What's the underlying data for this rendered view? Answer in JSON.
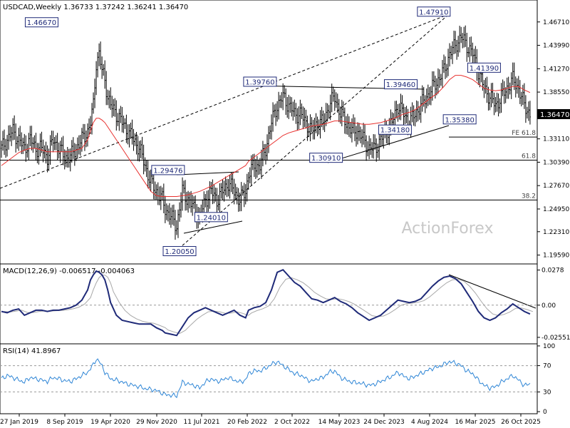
{
  "chart_data": {
    "type": "line",
    "title": "USDCAD,Weekly  1.36733 1.37242 1.36241 1.36470",
    "watermark": "ActionForex",
    "colors": {
      "candle": "#000000",
      "sma": "#e8312f",
      "macd": "#1f2a78",
      "signal": "#a8a8a8",
      "rsi": "#2f86d6",
      "label_border": "#1f2a78",
      "trendline": "#000000"
    },
    "x_ticks": [
      "27 Jan 2019",
      "8 Sep 2019",
      "19 Apr 2020",
      "29 Nov 2020",
      "11 Jul 2021",
      "20 Feb 2022",
      "2 Oct 2022",
      "14 May 2023",
      "24 Dec 2023",
      "4 Aug 2024",
      "16 Mar 2025",
      "26 Oct 2025"
    ],
    "price_panel": {
      "ylim": [
        1.1889,
        1.4893
      ],
      "y_ticks": [
        "1.46710",
        "1.43990",
        "1.41270",
        "1.38550",
        "1.35830",
        "1.33110",
        "1.30390",
        "1.27670",
        "1.24950",
        "1.22310",
        "1.19590"
      ],
      "last_price": "1.36470",
      "series_t": [
        0,
        4,
        8,
        12,
        16,
        20,
        24,
        28,
        32,
        36,
        40,
        44,
        48,
        52,
        56,
        60,
        62,
        64,
        66,
        68,
        70,
        72,
        74,
        76,
        80,
        84,
        88,
        92,
        96,
        100,
        104,
        108,
        112,
        114,
        118,
        122,
        126,
        130,
        134,
        138,
        142,
        146,
        150,
        154,
        158,
        162,
        166,
        170,
        172,
        176,
        180,
        184,
        188,
        192,
        196,
        200,
        204,
        208,
        212,
        216,
        220,
        224,
        228,
        232,
        236,
        240,
        244,
        248,
        252,
        256,
        260,
        264,
        268,
        272,
        276,
        280,
        284,
        288,
        292,
        296,
        300,
        304,
        308,
        312,
        316,
        320,
        324,
        328,
        332,
        336,
        340,
        344,
        348,
        352,
        356,
        360,
        364,
        368
      ],
      "close": [
        1.32,
        1.33,
        1.34,
        1.33,
        1.32,
        1.33,
        1.32,
        1.32,
        1.31,
        1.33,
        1.32,
        1.31,
        1.31,
        1.32,
        1.33,
        1.34,
        1.35,
        1.37,
        1.42,
        1.43,
        1.41,
        1.4,
        1.38,
        1.37,
        1.36,
        1.35,
        1.34,
        1.33,
        1.32,
        1.3,
        1.28,
        1.27,
        1.26,
        1.25,
        1.24,
        1.23,
        1.27,
        1.26,
        1.25,
        1.24,
        1.26,
        1.27,
        1.26,
        1.27,
        1.28,
        1.27,
        1.26,
        1.27,
        1.29,
        1.3,
        1.3,
        1.32,
        1.35,
        1.37,
        1.38,
        1.37,
        1.36,
        1.36,
        1.35,
        1.34,
        1.35,
        1.35,
        1.37,
        1.38,
        1.36,
        1.35,
        1.34,
        1.34,
        1.33,
        1.32,
        1.32,
        1.33,
        1.34,
        1.35,
        1.37,
        1.36,
        1.35,
        1.36,
        1.37,
        1.38,
        1.39,
        1.4,
        1.41,
        1.43,
        1.44,
        1.45,
        1.44,
        1.43,
        1.41,
        1.39,
        1.38,
        1.37,
        1.38,
        1.39,
        1.4,
        1.39,
        1.37,
        1.36
      ],
      "sma": [
        1.3,
        1.305,
        1.31,
        1.315,
        1.318,
        1.32,
        1.32,
        1.318,
        1.316,
        1.316,
        1.316,
        1.316,
        1.316,
        1.318,
        1.32,
        1.33,
        1.34,
        1.35,
        1.355,
        1.355,
        1.353,
        1.35,
        1.345,
        1.34,
        1.33,
        1.32,
        1.31,
        1.3,
        1.29,
        1.28,
        1.27,
        1.265,
        1.264,
        1.264,
        1.264,
        1.264,
        1.265,
        1.266,
        1.268,
        1.27,
        1.273,
        1.276,
        1.28,
        1.284,
        1.288,
        1.292,
        1.296,
        1.3,
        1.305,
        1.31,
        1.315,
        1.32,
        1.325,
        1.33,
        1.335,
        1.338,
        1.34,
        1.342,
        1.344,
        1.346,
        1.347,
        1.348,
        1.35,
        1.352,
        1.352,
        1.351,
        1.35,
        1.349,
        1.348,
        1.348,
        1.349,
        1.35,
        1.352,
        1.354,
        1.357,
        1.36,
        1.362,
        1.365,
        1.37,
        1.375,
        1.38,
        1.385,
        1.392,
        1.4,
        1.405,
        1.405,
        1.403,
        1.4,
        1.395,
        1.39,
        1.388,
        1.387,
        1.388,
        1.39,
        1.392,
        1.392,
        1.388,
        1.385
      ],
      "labels": [
        {
          "text": "1.46670",
          "t": 28,
          "p": 1.4667
        },
        {
          "text": "1.20050",
          "t": 124,
          "p": 1.2005
        },
        {
          "text": "1.29476",
          "t": 116,
          "p": 1.2948
        },
        {
          "text": "1.24010",
          "t": 146,
          "p": 1.2401
        },
        {
          "text": "1.39760",
          "t": 180,
          "p": 1.3976
        },
        {
          "text": "1.30910",
          "t": 226,
          "p": 1.3091
        },
        {
          "text": "1.39460",
          "t": 278,
          "p": 1.3946
        },
        {
          "text": "1.34180",
          "t": 274,
          "p": 1.3418
        },
        {
          "text": "1.47910",
          "t": 301,
          "p": 1.4791
        },
        {
          "text": "1.35380",
          "t": 319,
          "p": 1.3538
        },
        {
          "text": "1.41390",
          "t": 336,
          "p": 1.4139
        }
      ],
      "fib_levels": [
        {
          "text": "FE 61.8",
          "p": 1.3332
        },
        {
          "text": "61.8",
          "p": 1.3063
        },
        {
          "text": "38.2",
          "p": 1.26
        }
      ]
    },
    "macd_panel": {
      "title": "MACD(12,26,9) -0.006517 -0.004063",
      "ylim": [
        -0.0295,
        0.0315
      ],
      "y_ticks": [
        "0.0278",
        "0.00",
        "-0.025511"
      ],
      "macd": [
        -0.005,
        -0.006,
        -0.004,
        -0.003,
        -0.008,
        -0.006,
        -0.004,
        -0.004,
        -0.005,
        -0.004,
        -0.004,
        -0.003,
        -0.002,
        0.0,
        0.004,
        0.012,
        0.02,
        0.024,
        0.027,
        0.026,
        0.024,
        0.02,
        0.012,
        0.002,
        -0.008,
        -0.012,
        -0.013,
        -0.014,
        -0.015,
        -0.015,
        -0.015,
        -0.018,
        -0.02,
        -0.022,
        -0.023,
        -0.024,
        -0.017,
        -0.01,
        -0.006,
        -0.004,
        -0.002,
        -0.004,
        -0.006,
        -0.008,
        -0.006,
        -0.004,
        -0.008,
        -0.01,
        -0.004,
        -0.002,
        -0.001,
        0.002,
        0.012,
        0.026,
        0.028,
        0.023,
        0.018,
        0.015,
        0.01,
        0.005,
        0.004,
        0.002,
        0.004,
        0.006,
        0.003,
        0.001,
        -0.002,
        -0.006,
        -0.009,
        -0.012,
        -0.01,
        -0.008,
        -0.004,
        0.0,
        0.004,
        0.003,
        0.002,
        0.003,
        0.005,
        0.01,
        0.015,
        0.019,
        0.022,
        0.023,
        0.021,
        0.017,
        0.01,
        0.003,
        -0.005,
        -0.01,
        -0.012,
        -0.01,
        -0.006,
        -0.003,
        0.001,
        -0.002,
        -0.005,
        -0.007
      ]
    },
    "rsi_panel": {
      "title": "RSI(14) 41.8967",
      "ylim": [
        -1,
        101
      ],
      "y_ticks": [
        "100",
        "70",
        "30",
        "0"
      ],
      "rsi": [
        50,
        55,
        52,
        48,
        45,
        52,
        50,
        48,
        46,
        52,
        50,
        47,
        46,
        50,
        55,
        60,
        65,
        72,
        80,
        76,
        70,
        60,
        55,
        50,
        48,
        45,
        42,
        40,
        38,
        35,
        34,
        32,
        28,
        26,
        25,
        24,
        45,
        42,
        40,
        36,
        45,
        50,
        46,
        48,
        52,
        48,
        45,
        48,
        58,
        62,
        62,
        66,
        72,
        76,
        70,
        64,
        58,
        56,
        50,
        46,
        50,
        52,
        60,
        62,
        52,
        48,
        45,
        44,
        42,
        40,
        42,
        46,
        50,
        54,
        60,
        54,
        50,
        54,
        58,
        62,
        66,
        68,
        72,
        76,
        74,
        70,
        62,
        58,
        48,
        40,
        36,
        38,
        45,
        50,
        55,
        48,
        40,
        42
      ]
    }
  }
}
